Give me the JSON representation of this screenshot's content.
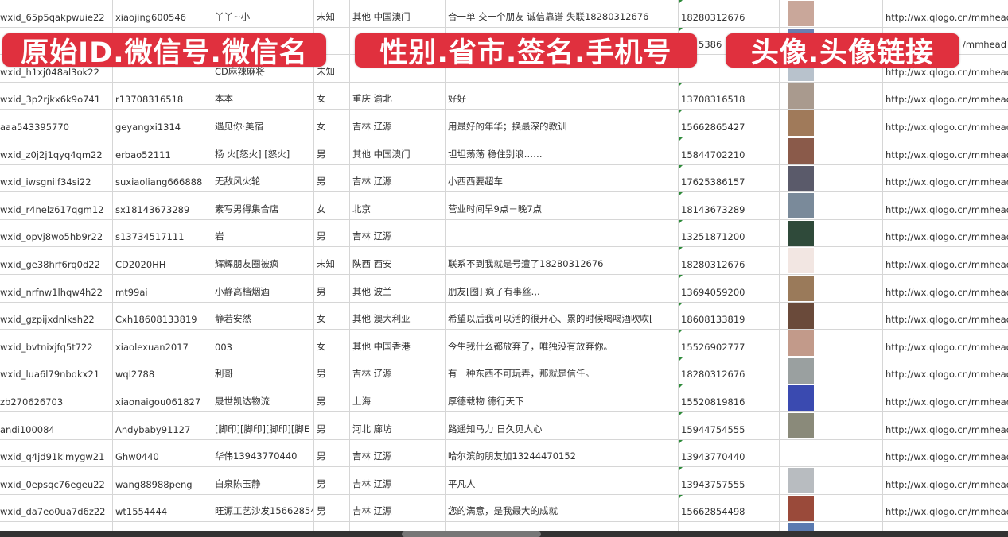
{
  "overlays": {
    "label1": "原始ID.微信号.微信名",
    "label2": "性别.省市.签名.手机号",
    "label3": "头像.头像链接",
    "color": "#e0303e"
  },
  "rows": [
    {
      "id": "wxid_65p5qakpwuie22",
      "wechat": "xiaojing600546",
      "name": "丫丫~小",
      "gender": "未知",
      "region": "其他 中国澳门",
      "signature": "合一单 交一个朋友 诚信靠谱 失联18280312676",
      "phone": "18280312676",
      "avatar_color": "#c9a79a",
      "url": "http://wx.qlogo.cn/mmhead"
    },
    {
      "id": "",
      "wechat": "",
      "name": "",
      "gender": "",
      "region": "",
      "signature": "",
      "phone": "5386",
      "avatar_color": "#6b7fb0",
      "url": "/mmhead"
    },
    {
      "id": "wxid_h1xj048al3ok22",
      "wechat": "",
      "name": "CD麻辣麻将",
      "gender": "未知",
      "region": "",
      "signature": "",
      "phone": "",
      "avatar_color": "#b8c2cc",
      "url": "http://wx.qlogo.cn/mmhead"
    },
    {
      "id": "wxid_3p2rjkx6k9o741",
      "wechat": "r13708316518",
      "name": "本本",
      "gender": "女",
      "region": "重庆 渝北",
      "signature": "好好",
      "phone": "13708316518",
      "avatar_color": "#a99a8e",
      "url": "http://wx.qlogo.cn/mmhead"
    },
    {
      "id": "aaa543395770",
      "wechat": "geyangxi1314",
      "name": "遇见你·美宿",
      "gender": "女",
      "region": "吉林 辽源",
      "signature": "用最好的年华；换最深的教训",
      "phone": "15662865427",
      "avatar_color": "#a07a5a",
      "url": "http://wx.qlogo.cn/mmhead"
    },
    {
      "id": "wxid_z0j2j1qyq4qm22",
      "wechat": "erbao52111",
      "name": "杨 火[怒火] [怒火]",
      "gender": "男",
      "region": "其他 中国澳门",
      "signature": "坦坦荡荡 稳住别浪……",
      "phone": "15844702210",
      "avatar_color": "#8a5a4a",
      "url": "http://wx.qlogo.cn/mmhead"
    },
    {
      "id": "wxid_iwsgnilf34si22",
      "wechat": "suxiaoliang666888",
      "name": "无敌风火轮",
      "gender": "男",
      "region": "吉林 辽源",
      "signature": "小西西要超车",
      "phone": "17625386157",
      "avatar_color": "#5a5a6a",
      "url": "http://wx.qlogo.cn/mmhead"
    },
    {
      "id": "wxid_r4nelz617qgm12",
      "wechat": "sx18143673289",
      "name": "素写男得集合店",
      "gender": "女",
      "region": "北京",
      "signature": "营业时间早9点－晚7点",
      "phone": "18143673289",
      "avatar_color": "#7a8a9a",
      "url": "http://wx.qlogo.cn/mmhead"
    },
    {
      "id": "wxid_opvj8wo5hb9r22",
      "wechat": "s13734517111",
      "name": "岩",
      "gender": "男",
      "region": "吉林 辽源",
      "signature": "",
      "phone": "13251871200",
      "avatar_color": "#2f4a3a",
      "url": "http://wx.qlogo.cn/mmhead"
    },
    {
      "id": "wxid_ge38hrf6rq0d22",
      "wechat": "CD2020HH",
      "name": "辉辉朋友圈被疯",
      "gender": "未知",
      "region": "陕西 西安",
      "signature": "联系不到我就是号遭了18280312676",
      "phone": "18280312676",
      "avatar_color": "#f2e6e2",
      "url": "http://wx.qlogo.cn/mmhead"
    },
    {
      "id": "wxid_nrfnw1lhqw4h22",
      "wechat": "mt99ai",
      "name": "小静高档烟酒",
      "gender": "男",
      "region": "其他 波兰",
      "signature": "朋友[圈] 疯了有事丝.,.",
      "phone": "13694059200",
      "avatar_color": "#9a7a5a",
      "url": "http://wx.qlogo.cn/mmhead"
    },
    {
      "id": "wxid_gzpijxdnlksh22",
      "wechat": "Cxh18608133819",
      "name": "静若安然",
      "gender": "女",
      "region": "其他 澳大利亚",
      "signature": "希望以后我可以活的很开心、累的时候喝喝酒吹吹[",
      "phone": "18608133819",
      "avatar_color": "#6a4a3a",
      "url": "http://wx.qlogo.cn/mmhead"
    },
    {
      "id": "wxid_bvtnixjfq5t722",
      "wechat": "xiaolexuan2017",
      "name": "003",
      "gender": "女",
      "region": "其他 中国香港",
      "signature": "今生我什么都放弃了，唯独没有放弃你。",
      "phone": "15526902777",
      "avatar_color": "#c29a8a",
      "url": "http://wx.qlogo.cn/mmhead"
    },
    {
      "id": "wxid_lua6l79nbdkx21",
      "wechat": "wql2788",
      "name": "利哥",
      "gender": "男",
      "region": "吉林 辽源",
      "signature": "有一种东西不可玩弄，那就是信任。",
      "phone": "18280312676",
      "avatar_color": "#9aa0a0",
      "url": "http://wx.qlogo.cn/mmhead"
    },
    {
      "id": "zb270626703",
      "wechat": "xiaonaigou061827",
      "name": "晟世凯达物流",
      "gender": "男",
      "region": "上海",
      "signature": "厚德载物 德行天下",
      "phone": "15520819816",
      "avatar_color": "#3a4ab0",
      "url": "http://wx.qlogo.cn/mmhead"
    },
    {
      "id": "andi100084",
      "wechat": "Andybaby91127",
      "name": "[脚印][脚印][脚印][脚E",
      "gender": "男",
      "region": "河北 廊坊",
      "signature": "路遥知马力 日久见人心",
      "phone": "15944754555",
      "avatar_color": "#8a8a7a",
      "url": "http://wx.qlogo.cn/mmhead"
    },
    {
      "id": "wxid_q4jd91kimygw21",
      "wechat": "Ghw0440",
      "name": "华伟13943770440",
      "gender": "男",
      "region": "吉林 辽源",
      "signature": "哈尔滨的朋友加13244470152",
      "phone": "13943770440",
      "avatar_color": "#ffffff",
      "url": "http://wx.qlogo.cn/mmhead"
    },
    {
      "id": "wxid_0epsqc76egeu22",
      "wechat": "wang88988peng",
      "name": "白泉陈玉静",
      "gender": "男",
      "region": "吉林 辽源",
      "signature": "平凡人",
      "phone": "13943757555",
      "avatar_color": "#b8bcc0",
      "url": "http://wx.qlogo.cn/mmhead"
    },
    {
      "id": "wxid_da7eo0ua7d6z22",
      "wechat": "wt1554444",
      "name": "旺源工艺沙发15662854",
      "gender": "男",
      "region": "吉林 辽源",
      "signature": "您的满意，是我最大的成就",
      "phone": "15662854498",
      "avatar_color": "#9a4a3a",
      "url": "http://wx.qlogo.cn/mmhead"
    },
    {
      "id": "",
      "wechat": "",
      "name": "",
      "gender": "",
      "region": "",
      "signature": "",
      "phone": "",
      "avatar_color": "#5a7ab0",
      "url": ""
    }
  ]
}
